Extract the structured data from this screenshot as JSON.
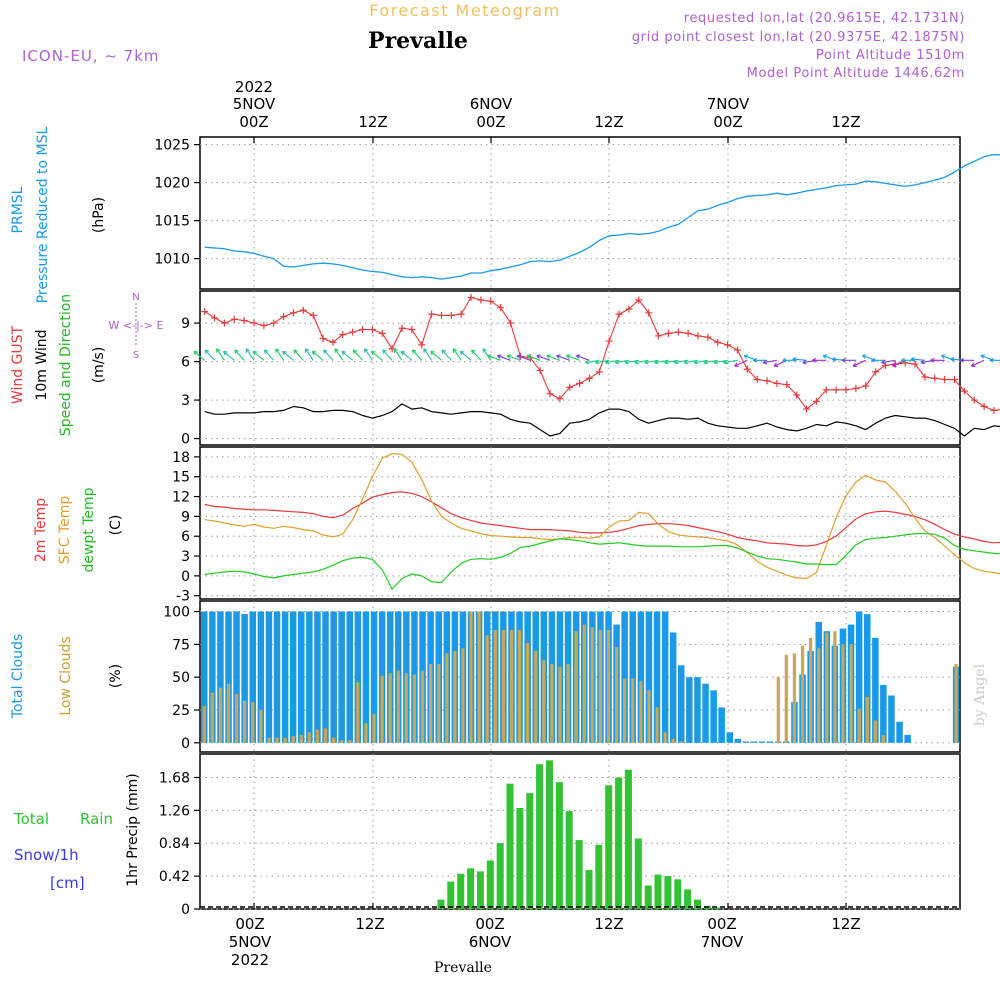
{
  "header": {
    "chart_title": "Forecast Meteogram",
    "location": "Prevalle",
    "model": "ICON-EU, ~ 7km",
    "requested_point": "requested lon,lat (20.9615E, 42.1731N)",
    "grid_point": "grid point closest lon,lat (20.9375E, 42.1875N)",
    "point_altitude": "Point Altitude 1510m",
    "model_point_altitude": "Model Point Altitude 1446.62m",
    "footer_location": "Prevalle",
    "watermark": "by Angel"
  },
  "colors": {
    "pressure": "#1a9ae6",
    "gust": "#e63b3b",
    "wind": "#000000",
    "direction_label": "#33cc33",
    "temp": "#e63b3b",
    "sfc_temp": "#e0a030",
    "dewpoint": "#22cc22",
    "total_clouds": "#1a9ae6",
    "low_clouds": "#c8a858",
    "rain": "#33c233",
    "snow": "#3a3ae6",
    "header_orange": "#f0c060",
    "header_purple": "#b060d0"
  },
  "top_axis": {
    "year": "2022",
    "ticks": [
      {
        "date": "5NOV",
        "time": "00Z"
      },
      {
        "date": "",
        "time": "12Z"
      },
      {
        "date": "6NOV",
        "time": "00Z"
      },
      {
        "date": "",
        "time": "12Z"
      },
      {
        "date": "7NOV",
        "time": "00Z"
      },
      {
        "date": "",
        "time": "12Z"
      }
    ]
  },
  "bottom_axis": {
    "year": "2022",
    "ticks": [
      {
        "time": "00Z",
        "date": "5NOV"
      },
      {
        "time": "12Z",
        "date": ""
      },
      {
        "time": "00Z",
        "date": "6NOV"
      },
      {
        "time": "12Z",
        "date": ""
      },
      {
        "time": "00Z",
        "date": "7NOV"
      },
      {
        "time": "12Z",
        "date": ""
      }
    ]
  },
  "panels": {
    "pressure": {
      "label_main": "PRMSL",
      "label_sub": "Pressure Reduced to MSL",
      "unit": "(hPa)",
      "ticks": [
        "1010",
        "1015",
        "1020",
        "1025"
      ]
    },
    "wind": {
      "label_gust": "Wind GUST",
      "label_wind": "10m Wind",
      "label_dir": "Speed and Direction",
      "unit": "(m/s)",
      "ticks": [
        "0",
        "3",
        "6",
        "9"
      ],
      "compass_n": "N",
      "compass_s": "S",
      "compass_we": "W <-|-> E"
    },
    "temp": {
      "label_t2m": "2m Temp",
      "label_sfc": "SFC Temp",
      "label_dew": "dewpt Temp",
      "unit": "(C)",
      "ticks": [
        "-3",
        "0",
        "3",
        "6",
        "9",
        "12",
        "15",
        "18"
      ]
    },
    "clouds": {
      "label_total": "Total Clouds",
      "label_low": "Low Clouds",
      "unit": "(%)",
      "ticks": [
        "0",
        "25",
        "50",
        "75",
        "100"
      ]
    },
    "precip": {
      "label_total": "Total",
      "label_rain": "Rain",
      "label_snow": "Snow/1h",
      "label_cm": "[cm]",
      "axis_label": "1hr Precip (mm)",
      "ticks": [
        "0",
        "0.42",
        "0.84",
        "1.26",
        "1.68"
      ]
    }
  },
  "chart_data": [
    {
      "type": "line",
      "title": "PRMSL Pressure Reduced to MSL",
      "ylabel": "(hPa)",
      "ylim": [
        1006,
        1026
      ],
      "x_hours_from_5NOV_00Z_start": -5,
      "x_step_hours": 1,
      "series": [
        {
          "name": "PRMSL",
          "values": [
            1011.5,
            1011.4,
            1011.3,
            1011.0,
            1010.9,
            1010.7,
            1010.3,
            1010.0,
            1009.0,
            1008.9,
            1009.1,
            1009.3,
            1009.4,
            1009.3,
            1009.1,
            1008.8,
            1008.5,
            1008.3,
            1008.2,
            1007.9,
            1007.6,
            1007.5,
            1007.6,
            1007.5,
            1007.3,
            1007.5,
            1007.7,
            1008.1,
            1008.1,
            1008.4,
            1008.6,
            1008.9,
            1009.2,
            1009.6,
            1009.7,
            1009.6,
            1009.8,
            1010.3,
            1010.8,
            1011.5,
            1012.4,
            1013.0,
            1013.1,
            1013.3,
            1013.2,
            1013.3,
            1013.6,
            1014.1,
            1014.5,
            1015.4,
            1016.3,
            1016.5,
            1017.0,
            1017.4,
            1017.9,
            1018.2,
            1018.3,
            1018.4,
            1018.6,
            1018.4,
            1018.6,
            1018.9,
            1019.1,
            1019.3,
            1019.6,
            1019.7,
            1019.8,
            1020.2,
            1020.1,
            1019.9,
            1019.7,
            1019.5,
            1019.7,
            1020.0,
            1020.3,
            1020.7,
            1021.4,
            1022.2,
            1022.8,
            1023.4,
            1023.7,
            1023.6,
            1023.3,
            1023.4
          ]
        }
      ]
    },
    {
      "type": "line",
      "title": "Wind GUST / 10m Wind Speed and Direction",
      "ylabel": "(m/s)",
      "ylim": [
        -0.5,
        11.5
      ],
      "series": [
        {
          "name": "Wind GUST",
          "values": [
            9.9,
            9.4,
            9.0,
            9.3,
            9.2,
            9.0,
            8.8,
            9.0,
            9.5,
            9.8,
            10.0,
            9.6,
            7.8,
            7.5,
            8.1,
            8.3,
            8.5,
            8.5,
            8.2,
            7.0,
            8.6,
            8.5,
            7.3,
            9.7,
            9.6,
            9.6,
            9.7,
            11.0,
            10.8,
            10.7,
            10.2,
            9.0,
            6.4,
            6.3,
            5.3,
            3.5,
            3.1,
            4.0,
            4.3,
            4.7,
            5.2,
            7.6,
            9.7,
            10.1,
            10.8,
            9.8,
            8.0,
            8.2,
            8.3,
            8.2,
            8.0,
            7.9,
            7.5,
            7.3,
            6.9,
            5.4,
            4.6,
            4.5,
            4.3,
            4.2,
            3.4,
            2.3,
            2.9,
            3.8,
            3.8,
            3.8,
            3.9,
            4.1,
            5.2,
            5.7,
            5.8,
            5.9,
            5.8,
            4.8,
            4.7,
            4.6,
            4.6,
            3.7,
            3.0,
            2.5,
            2.2,
            2.3,
            2.3,
            2.3,
            1.7
          ]
        },
        {
          "name": "10m Wind",
          "values": [
            2.1,
            1.9,
            1.9,
            2.0,
            2.0,
            2.0,
            2.1,
            2.1,
            2.2,
            2.5,
            2.4,
            2.1,
            2.1,
            2.2,
            2.2,
            2.1,
            1.8,
            1.6,
            1.8,
            2.1,
            2.7,
            2.3,
            2.4,
            2.1,
            2.0,
            1.9,
            2.0,
            2.1,
            2.1,
            2.0,
            1.9,
            1.5,
            1.3,
            1.2,
            0.7,
            0.2,
            0.4,
            1.2,
            1.3,
            1.5,
            2.0,
            2.3,
            2.3,
            2.1,
            1.5,
            1.2,
            1.4,
            1.6,
            1.6,
            1.5,
            1.6,
            1.2,
            1.0,
            0.9,
            0.8,
            0.8,
            1.0,
            1.2,
            0.9,
            0.7,
            0.6,
            0.8,
            1.1,
            1.0,
            1.3,
            1.2,
            1.0,
            0.7,
            1.2,
            1.6,
            1.8,
            1.7,
            1.6,
            1.6,
            1.4,
            1.1,
            0.8,
            0.2,
            0.8,
            0.7,
            1.0,
            0.9,
            1.2,
            1.0,
            0.2
          ]
        }
      ]
    },
    {
      "type": "line",
      "title": "2m Temp / SFC Temp / dewpt Temp",
      "ylabel": "(C)",
      "ylim": [
        -3.5,
        19.5
      ],
      "series": [
        {
          "name": "2m Temp",
          "values": [
            10.8,
            10.5,
            10.4,
            10.2,
            10.1,
            10.0,
            10.0,
            9.9,
            9.8,
            9.7,
            9.6,
            9.4,
            9.0,
            8.8,
            9.2,
            10.2,
            11.0,
            11.9,
            12.3,
            12.6,
            12.7,
            12.5,
            12.0,
            11.2,
            10.3,
            9.4,
            8.8,
            8.4,
            8.0,
            7.8,
            7.6,
            7.4,
            7.2,
            7.0,
            7.0,
            7.0,
            6.9,
            6.8,
            6.6,
            6.5,
            6.5,
            6.6,
            6.8,
            7.2,
            7.6,
            7.8,
            7.9,
            7.9,
            7.8,
            7.6,
            7.3,
            7.0,
            6.7,
            6.3,
            5.8,
            5.5,
            5.3,
            5.0,
            4.9,
            4.8,
            4.6,
            4.5,
            4.7,
            5.2,
            6.0,
            7.3,
            8.6,
            9.4,
            9.7,
            9.8,
            9.6,
            9.3,
            9.0,
            8.5,
            7.8,
            7.0,
            6.3,
            5.9,
            5.6,
            5.2,
            5.0,
            5.1,
            5.3,
            5.1
          ]
        },
        {
          "name": "SFC Temp",
          "values": [
            8.5,
            8.3,
            8.0,
            7.7,
            7.5,
            7.8,
            7.4,
            7.2,
            7.5,
            7.3,
            7.0,
            6.8,
            6.2,
            5.9,
            6.3,
            8.5,
            11.6,
            15.0,
            17.8,
            18.5,
            18.4,
            17.2,
            14.6,
            11.3,
            9.0,
            8.0,
            7.2,
            6.8,
            6.4,
            6.1,
            6.0,
            5.9,
            5.8,
            5.8,
            5.6,
            5.5,
            5.6,
            5.8,
            5.8,
            5.7,
            5.9,
            7.4,
            8.3,
            8.4,
            9.6,
            9.4,
            7.8,
            6.7,
            6.2,
            6.0,
            5.9,
            5.8,
            5.5,
            5.3,
            4.7,
            3.5,
            2.2,
            1.3,
            0.7,
            0.1,
            -0.3,
            -0.4,
            0.5,
            4.6,
            8.8,
            12.1,
            14.2,
            15.2,
            14.5,
            14.2,
            12.8,
            11.0,
            8.7,
            6.8,
            5.8,
            4.5,
            3.2,
            2.0,
            1.1,
            0.7,
            0.5,
            0.2,
            -0.3,
            -0.4
          ]
        },
        {
          "name": "dewpt Temp",
          "values": [
            0.2,
            0.4,
            0.6,
            0.7,
            0.6,
            0.3,
            -0.1,
            -0.3,
            0.0,
            0.2,
            0.4,
            0.6,
            1.0,
            1.6,
            2.3,
            2.7,
            2.8,
            2.5,
            0.9,
            -2.0,
            -0.4,
            0.3,
            0.0,
            -0.9,
            -1.0,
            0.6,
            1.9,
            2.5,
            2.6,
            2.5,
            2.8,
            3.4,
            4.3,
            4.5,
            4.9,
            5.3,
            5.6,
            5.5,
            5.3,
            5.0,
            4.8,
            4.9,
            5.0,
            4.8,
            4.6,
            4.5,
            4.5,
            4.5,
            4.4,
            4.4,
            4.4,
            4.5,
            4.6,
            4.6,
            4.2,
            3.6,
            3.0,
            2.6,
            2.5,
            2.3,
            2.1,
            1.8,
            1.8,
            1.7,
            1.7,
            3.1,
            4.7,
            5.5,
            5.7,
            5.8,
            6.0,
            6.2,
            6.4,
            6.4,
            6.3,
            5.7,
            4.6,
            4.0,
            3.8,
            3.6,
            3.4,
            3.3,
            3.1,
            3.2
          ]
        }
      ]
    },
    {
      "type": "bar",
      "title": "Total Clouds / Low Clouds",
      "ylabel": "(%)",
      "ylim": [
        0,
        100
      ],
      "series": [
        {
          "name": "Total Clouds",
          "values": [
            100,
            100,
            100,
            100,
            100,
            98,
            100,
            100,
            100,
            100,
            100,
            100,
            100,
            100,
            100,
            100,
            100,
            100,
            100,
            100,
            100,
            100,
            100,
            100,
            100,
            100,
            100,
            100,
            100,
            100,
            100,
            100,
            100,
            100,
            100,
            100,
            100,
            100,
            100,
            100,
            100,
            100,
            100,
            100,
            100,
            100,
            100,
            100,
            100,
            100,
            100,
            90,
            100,
            100,
            100,
            100,
            100,
            100,
            84,
            59,
            50,
            50,
            45,
            40,
            27,
            8,
            3,
            1,
            1,
            1,
            1,
            1,
            1,
            31,
            52,
            70,
            92,
            85,
            74,
            87,
            90,
            100,
            98,
            80,
            44,
            36,
            16,
            6,
            0,
            0,
            0,
            0,
            0,
            58
          ]
        },
        {
          "name": "Low Clouds",
          "values": [
            28,
            38,
            42,
            45,
            37,
            32,
            31,
            25,
            4,
            4,
            4,
            5,
            6,
            8,
            10,
            11,
            4,
            2,
            2,
            46,
            15,
            22,
            51,
            53,
            55,
            53,
            52,
            55,
            60,
            60,
            68,
            70,
            72,
            100,
            100,
            82,
            86,
            86,
            86,
            86,
            76,
            70,
            63,
            60,
            58,
            60,
            85,
            90,
            88,
            86,
            86,
            73,
            49,
            49,
            47,
            40,
            27,
            8,
            3,
            1,
            0,
            0,
            0,
            0,
            0,
            0,
            0,
            0,
            0,
            0,
            0,
            50,
            67,
            68,
            74,
            80,
            72,
            84,
            85,
            75,
            75,
            26,
            35,
            17,
            6,
            0,
            0,
            0,
            0,
            0,
            0,
            0,
            0,
            60
          ]
        }
      ]
    },
    {
      "type": "bar",
      "title": "1hr Precip",
      "ylabel": "1hr Precip (mm)",
      "ylim": [
        0,
        2.0
      ],
      "series": [
        {
          "name": "Total Rain",
          "values": [
            0,
            0,
            0,
            0,
            0,
            0,
            0,
            0,
            0,
            0,
            0,
            0,
            0,
            0,
            0,
            0,
            0,
            0,
            0,
            0,
            0,
            0,
            0,
            0,
            0.12,
            0.35,
            0.45,
            0.52,
            0.48,
            0.62,
            0.84,
            1.6,
            1.29,
            1.48,
            1.85,
            1.9,
            1.62,
            1.25,
            0.88,
            0.5,
            0.82,
            1.58,
            1.68,
            1.78,
            0.9,
            0.3,
            0.44,
            0.42,
            0.38,
            0.25,
            0.12,
            0.04,
            0.02,
            0,
            0,
            0,
            0,
            0,
            0,
            0,
            0,
            0,
            0,
            0,
            0,
            0,
            0,
            0,
            0,
            0,
            0,
            0,
            0,
            0,
            0,
            0,
            0,
            0,
            0,
            0,
            0,
            0,
            0,
            0
          ]
        }
      ]
    }
  ]
}
